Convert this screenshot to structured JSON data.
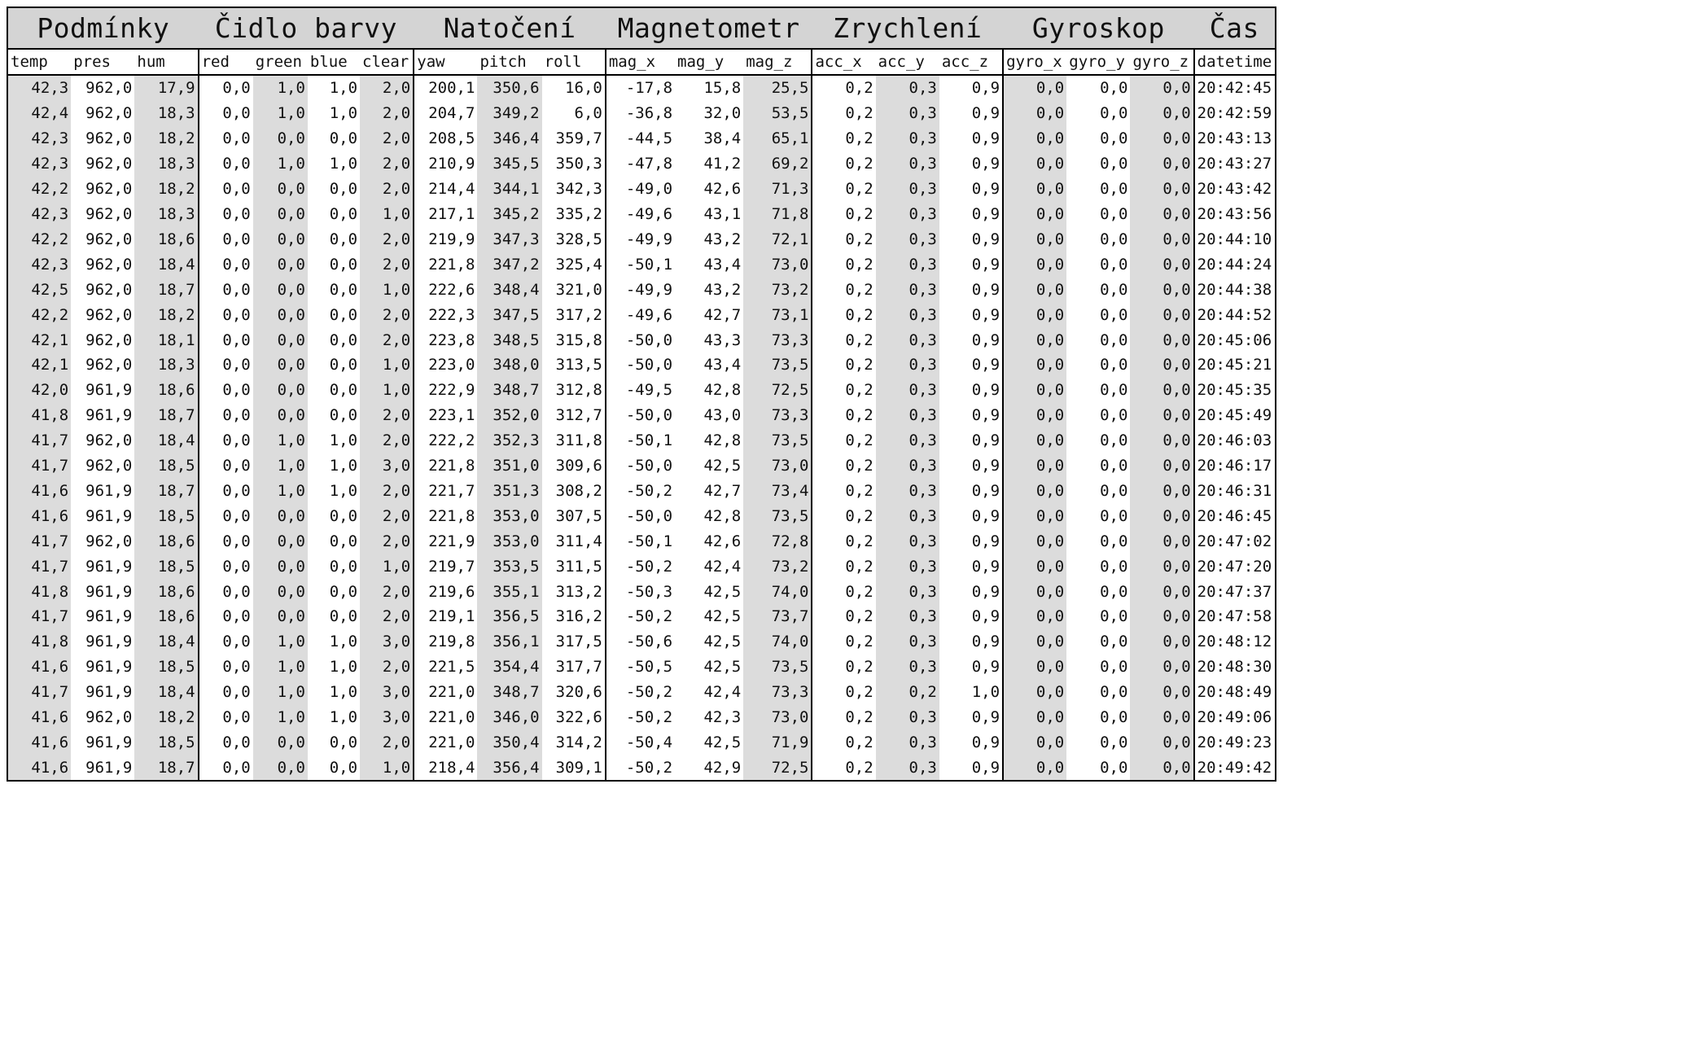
{
  "groups": [
    {
      "label": "Podmínky",
      "span": 3
    },
    {
      "label": "Čidlo barvy",
      "span": 4
    },
    {
      "label": "Natočení",
      "span": 3
    },
    {
      "label": "Magnetometr",
      "span": 3
    },
    {
      "label": "Zrychlení",
      "span": 3
    },
    {
      "label": "Gyroskop",
      "span": 3
    },
    {
      "label": "Čas",
      "span": 1
    }
  ],
  "columns": [
    "temp",
    "pres",
    "hum",
    "red",
    "green",
    "blue",
    "clear",
    "yaw",
    "pitch",
    "roll",
    "mag_x",
    "mag_y",
    "mag_z",
    "acc_x",
    "acc_y",
    "acc_z",
    "gyro_x",
    "gyro_y",
    "gyro_z",
    "datetime"
  ],
  "rows": [
    [
      "42,3",
      "962,0",
      "17,9",
      "0,0",
      "1,0",
      "1,0",
      "2,0",
      "200,1",
      "350,6",
      "16,0",
      "-17,8",
      "15,8",
      "25,5",
      "0,2",
      "0,3",
      "0,9",
      "0,0",
      "0,0",
      "0,0",
      "20:42:45"
    ],
    [
      "42,4",
      "962,0",
      "18,3",
      "0,0",
      "1,0",
      "1,0",
      "2,0",
      "204,7",
      "349,2",
      "6,0",
      "-36,8",
      "32,0",
      "53,5",
      "0,2",
      "0,3",
      "0,9",
      "0,0",
      "0,0",
      "0,0",
      "20:42:59"
    ],
    [
      "42,3",
      "962,0",
      "18,2",
      "0,0",
      "0,0",
      "0,0",
      "2,0",
      "208,5",
      "346,4",
      "359,7",
      "-44,5",
      "38,4",
      "65,1",
      "0,2",
      "0,3",
      "0,9",
      "0,0",
      "0,0",
      "0,0",
      "20:43:13"
    ],
    [
      "42,3",
      "962,0",
      "18,3",
      "0,0",
      "1,0",
      "1,0",
      "2,0",
      "210,9",
      "345,5",
      "350,3",
      "-47,8",
      "41,2",
      "69,2",
      "0,2",
      "0,3",
      "0,9",
      "0,0",
      "0,0",
      "0,0",
      "20:43:27"
    ],
    [
      "42,2",
      "962,0",
      "18,2",
      "0,0",
      "0,0",
      "0,0",
      "2,0",
      "214,4",
      "344,1",
      "342,3",
      "-49,0",
      "42,6",
      "71,3",
      "0,2",
      "0,3",
      "0,9",
      "0,0",
      "0,0",
      "0,0",
      "20:43:42"
    ],
    [
      "42,3",
      "962,0",
      "18,3",
      "0,0",
      "0,0",
      "0,0",
      "1,0",
      "217,1",
      "345,2",
      "335,2",
      "-49,6",
      "43,1",
      "71,8",
      "0,2",
      "0,3",
      "0,9",
      "0,0",
      "0,0",
      "0,0",
      "20:43:56"
    ],
    [
      "42,2",
      "962,0",
      "18,6",
      "0,0",
      "0,0",
      "0,0",
      "2,0",
      "219,9",
      "347,3",
      "328,5",
      "-49,9",
      "43,2",
      "72,1",
      "0,2",
      "0,3",
      "0,9",
      "0,0",
      "0,0",
      "0,0",
      "20:44:10"
    ],
    [
      "42,3",
      "962,0",
      "18,4",
      "0,0",
      "0,0",
      "0,0",
      "2,0",
      "221,8",
      "347,2",
      "325,4",
      "-50,1",
      "43,4",
      "73,0",
      "0,2",
      "0,3",
      "0,9",
      "0,0",
      "0,0",
      "0,0",
      "20:44:24"
    ],
    [
      "42,5",
      "962,0",
      "18,7",
      "0,0",
      "0,0",
      "0,0",
      "1,0",
      "222,6",
      "348,4",
      "321,0",
      "-49,9",
      "43,2",
      "73,2",
      "0,2",
      "0,3",
      "0,9",
      "0,0",
      "0,0",
      "0,0",
      "20:44:38"
    ],
    [
      "42,2",
      "962,0",
      "18,2",
      "0,0",
      "0,0",
      "0,0",
      "2,0",
      "222,3",
      "347,5",
      "317,2",
      "-49,6",
      "42,7",
      "73,1",
      "0,2",
      "0,3",
      "0,9",
      "0,0",
      "0,0",
      "0,0",
      "20:44:52"
    ],
    [
      "42,1",
      "962,0",
      "18,1",
      "0,0",
      "0,0",
      "0,0",
      "2,0",
      "223,8",
      "348,5",
      "315,8",
      "-50,0",
      "43,3",
      "73,3",
      "0,2",
      "0,3",
      "0,9",
      "0,0",
      "0,0",
      "0,0",
      "20:45:06"
    ],
    [
      "42,1",
      "962,0",
      "18,3",
      "0,0",
      "0,0",
      "0,0",
      "1,0",
      "223,0",
      "348,0",
      "313,5",
      "-50,0",
      "43,4",
      "73,5",
      "0,2",
      "0,3",
      "0,9",
      "0,0",
      "0,0",
      "0,0",
      "20:45:21"
    ],
    [
      "42,0",
      "961,9",
      "18,6",
      "0,0",
      "0,0",
      "0,0",
      "1,0",
      "222,9",
      "348,7",
      "312,8",
      "-49,5",
      "42,8",
      "72,5",
      "0,2",
      "0,3",
      "0,9",
      "0,0",
      "0,0",
      "0,0",
      "20:45:35"
    ],
    [
      "41,8",
      "961,9",
      "18,7",
      "0,0",
      "0,0",
      "0,0",
      "2,0",
      "223,1",
      "352,0",
      "312,7",
      "-50,0",
      "43,0",
      "73,3",
      "0,2",
      "0,3",
      "0,9",
      "0,0",
      "0,0",
      "0,0",
      "20:45:49"
    ],
    [
      "41,7",
      "962,0",
      "18,4",
      "0,0",
      "1,0",
      "1,0",
      "2,0",
      "222,2",
      "352,3",
      "311,8",
      "-50,1",
      "42,8",
      "73,5",
      "0,2",
      "0,3",
      "0,9",
      "0,0",
      "0,0",
      "0,0",
      "20:46:03"
    ],
    [
      "41,7",
      "962,0",
      "18,5",
      "0,0",
      "1,0",
      "1,0",
      "3,0",
      "221,8",
      "351,0",
      "309,6",
      "-50,0",
      "42,5",
      "73,0",
      "0,2",
      "0,3",
      "0,9",
      "0,0",
      "0,0",
      "0,0",
      "20:46:17"
    ],
    [
      "41,6",
      "961,9",
      "18,7",
      "0,0",
      "1,0",
      "1,0",
      "2,0",
      "221,7",
      "351,3",
      "308,2",
      "-50,2",
      "42,7",
      "73,4",
      "0,2",
      "0,3",
      "0,9",
      "0,0",
      "0,0",
      "0,0",
      "20:46:31"
    ],
    [
      "41,6",
      "961,9",
      "18,5",
      "0,0",
      "0,0",
      "0,0",
      "2,0",
      "221,8",
      "353,0",
      "307,5",
      "-50,0",
      "42,8",
      "73,5",
      "0,2",
      "0,3",
      "0,9",
      "0,0",
      "0,0",
      "0,0",
      "20:46:45"
    ],
    [
      "41,7",
      "962,0",
      "18,6",
      "0,0",
      "0,0",
      "0,0",
      "2,0",
      "221,9",
      "353,0",
      "311,4",
      "-50,1",
      "42,6",
      "72,8",
      "0,2",
      "0,3",
      "0,9",
      "0,0",
      "0,0",
      "0,0",
      "20:47:02"
    ],
    [
      "41,7",
      "961,9",
      "18,5",
      "0,0",
      "0,0",
      "0,0",
      "1,0",
      "219,7",
      "353,5",
      "311,5",
      "-50,2",
      "42,4",
      "73,2",
      "0,2",
      "0,3",
      "0,9",
      "0,0",
      "0,0",
      "0,0",
      "20:47:20"
    ],
    [
      "41,8",
      "961,9",
      "18,6",
      "0,0",
      "0,0",
      "0,0",
      "2,0",
      "219,6",
      "355,1",
      "313,2",
      "-50,3",
      "42,5",
      "74,0",
      "0,2",
      "0,3",
      "0,9",
      "0,0",
      "0,0",
      "0,0",
      "20:47:37"
    ],
    [
      "41,7",
      "961,9",
      "18,6",
      "0,0",
      "0,0",
      "0,0",
      "2,0",
      "219,1",
      "356,5",
      "316,2",
      "-50,2",
      "42,5",
      "73,7",
      "0,2",
      "0,3",
      "0,9",
      "0,0",
      "0,0",
      "0,0",
      "20:47:58"
    ],
    [
      "41,8",
      "961,9",
      "18,4",
      "0,0",
      "1,0",
      "1,0",
      "3,0",
      "219,8",
      "356,1",
      "317,5",
      "-50,6",
      "42,5",
      "74,0",
      "0,2",
      "0,3",
      "0,9",
      "0,0",
      "0,0",
      "0,0",
      "20:48:12"
    ],
    [
      "41,6",
      "961,9",
      "18,5",
      "0,0",
      "1,0",
      "1,0",
      "2,0",
      "221,5",
      "354,4",
      "317,7",
      "-50,5",
      "42,5",
      "73,5",
      "0,2",
      "0,3",
      "0,9",
      "0,0",
      "0,0",
      "0,0",
      "20:48:30"
    ],
    [
      "41,7",
      "961,9",
      "18,4",
      "0,0",
      "1,0",
      "1,0",
      "3,0",
      "221,0",
      "348,7",
      "320,6",
      "-50,2",
      "42,4",
      "73,3",
      "0,2",
      "0,2",
      "1,0",
      "0,0",
      "0,0",
      "0,0",
      "20:48:49"
    ],
    [
      "41,6",
      "962,0",
      "18,2",
      "0,0",
      "1,0",
      "1,0",
      "3,0",
      "221,0",
      "346,0",
      "322,6",
      "-50,2",
      "42,3",
      "73,0",
      "0,2",
      "0,3",
      "0,9",
      "0,0",
      "0,0",
      "0,0",
      "20:49:06"
    ],
    [
      "41,6",
      "961,9",
      "18,5",
      "0,0",
      "0,0",
      "0,0",
      "2,0",
      "221,0",
      "350,4",
      "314,2",
      "-50,4",
      "42,5",
      "71,9",
      "0,2",
      "0,3",
      "0,9",
      "0,0",
      "0,0",
      "0,0",
      "20:49:23"
    ],
    [
      "41,6",
      "961,9",
      "18,7",
      "0,0",
      "0,0",
      "0,0",
      "1,0",
      "218,4",
      "356,4",
      "309,1",
      "-50,2",
      "42,9",
      "72,5",
      "0,2",
      "0,3",
      "0,9",
      "0,0",
      "0,0",
      "0,0",
      "20:49:42"
    ]
  ]
}
